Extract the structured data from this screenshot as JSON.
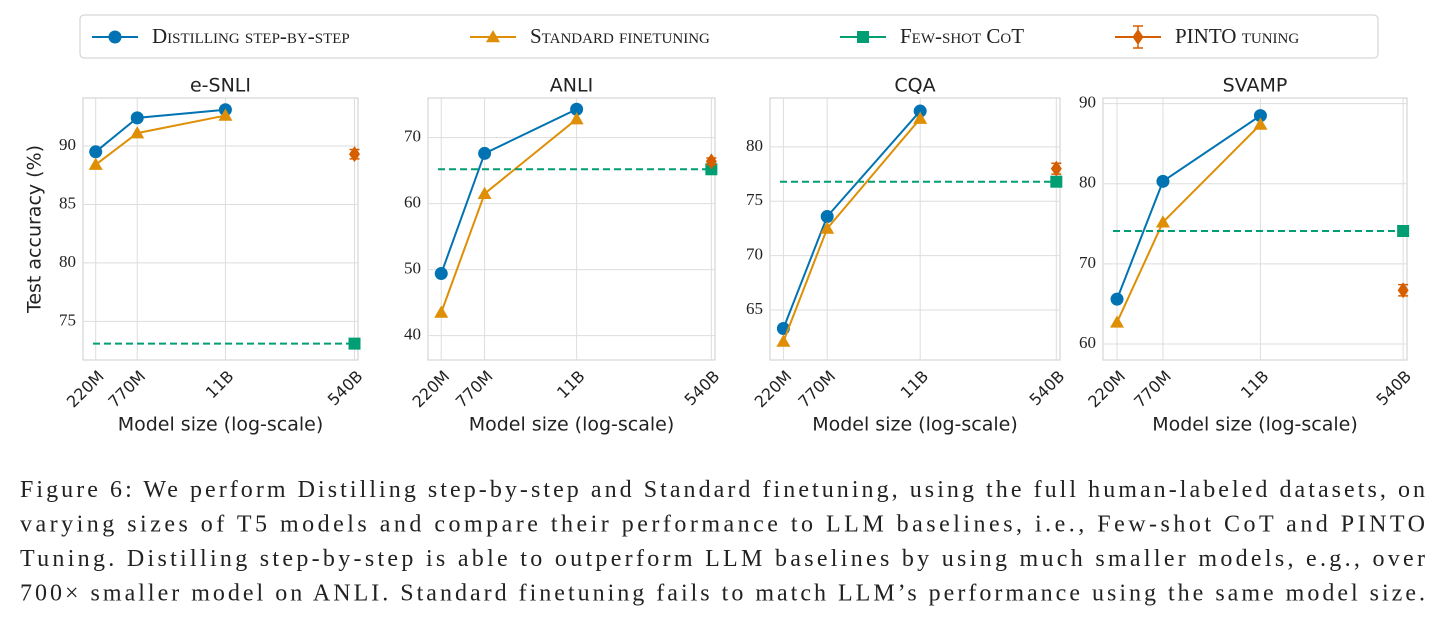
{
  "chart_data": [
    {
      "type": "line",
      "title": "e-SNLI",
      "ylabel": "Test accuracy (%)",
      "xlabel": "Model size (log-scale)",
      "xscale": "log",
      "grid": true,
      "xlim": [
        0.15,
        600
      ],
      "ylim": [
        71.7,
        94.1
      ],
      "xticks": [
        {
          "value": 0.22,
          "label": "220M"
        },
        {
          "value": 0.77,
          "label": "770M"
        },
        {
          "value": 11,
          "label": "11B"
        },
        {
          "value": 540,
          "label": "540B"
        }
      ],
      "yticks": [
        75,
        80,
        85,
        90
      ],
      "series": [
        {
          "name": "Distilling step-by-step",
          "color": "#0173b2",
          "marker": "circle",
          "x": [
            0.22,
            0.77,
            11
          ],
          "values": [
            89.5,
            92.4,
            93.1
          ]
        },
        {
          "name": "Standard finetuning",
          "color": "#de8f05",
          "marker": "triangle",
          "x": [
            0.22,
            0.77,
            11
          ],
          "values": [
            88.4,
            91.1,
            92.6
          ]
        },
        {
          "name": "Few-shot CoT",
          "color": "#029e73",
          "marker": "square",
          "dashed_hline": true,
          "x": [
            540
          ],
          "values": [
            73.1
          ]
        },
        {
          "name": "PINTO tuning",
          "color": "#d55e00",
          "marker": "diamond",
          "x": [
            540
          ],
          "values": [
            89.3
          ],
          "errors": [
            0.4
          ]
        }
      ]
    },
    {
      "type": "line",
      "title": "ANLI",
      "xlabel": "Model size (log-scale)",
      "xscale": "log",
      "grid": true,
      "xlim": [
        0.15,
        600
      ],
      "ylim": [
        36.3,
        76
      ],
      "xticks": [
        {
          "value": 0.22,
          "label": "220M"
        },
        {
          "value": 0.77,
          "label": "770M"
        },
        {
          "value": 11,
          "label": "11B"
        },
        {
          "value": 540,
          "label": "540B"
        }
      ],
      "yticks": [
        40,
        50,
        60,
        70
      ],
      "series": [
        {
          "name": "Distilling step-by-step",
          "color": "#0173b2",
          "marker": "circle",
          "x": [
            0.22,
            0.77,
            11
          ],
          "values": [
            49.4,
            67.6,
            74.3
          ]
        },
        {
          "name": "Standard finetuning",
          "color": "#de8f05",
          "marker": "triangle",
          "x": [
            0.22,
            0.77,
            11
          ],
          "values": [
            43.5,
            61.5,
            72.8
          ]
        },
        {
          "name": "Few-shot CoT",
          "color": "#029e73",
          "marker": "square",
          "dashed_hline": true,
          "x": [
            540
          ],
          "values": [
            65.2
          ]
        },
        {
          "name": "PINTO tuning",
          "color": "#d55e00",
          "marker": "diamond",
          "x": [
            540
          ],
          "values": [
            66.4
          ],
          "errors": [
            0.5
          ]
        }
      ]
    },
    {
      "type": "line",
      "title": "CQA",
      "xlabel": "Model size (log-scale)",
      "xscale": "log",
      "grid": true,
      "xlim": [
        0.15,
        600
      ],
      "ylim": [
        60.4,
        84.5
      ],
      "xticks": [
        {
          "value": 0.22,
          "label": "220M"
        },
        {
          "value": 0.77,
          "label": "770M"
        },
        {
          "value": 11,
          "label": "11B"
        },
        {
          "value": 540,
          "label": "540B"
        }
      ],
      "yticks": [
        65,
        70,
        75,
        80
      ],
      "series": [
        {
          "name": "Distilling step-by-step",
          "color": "#0173b2",
          "marker": "circle",
          "x": [
            0.22,
            0.77,
            11
          ],
          "values": [
            63.3,
            73.6,
            83.3
          ]
        },
        {
          "name": "Standard finetuning",
          "color": "#de8f05",
          "marker": "triangle",
          "x": [
            0.22,
            0.77,
            11
          ],
          "values": [
            62.1,
            72.5,
            82.6
          ]
        },
        {
          "name": "Few-shot CoT",
          "color": "#029e73",
          "marker": "square",
          "dashed_hline": true,
          "x": [
            540
          ],
          "values": [
            76.8
          ]
        },
        {
          "name": "PINTO tuning",
          "color": "#d55e00",
          "marker": "diamond",
          "x": [
            540
          ],
          "values": [
            78.0
          ],
          "errors": [
            0.5
          ]
        }
      ]
    },
    {
      "type": "line",
      "title": "SVAMP",
      "xlabel": "Model size (log-scale)",
      "xscale": "log",
      "grid": true,
      "xlim": [
        0.15,
        600
      ],
      "ylim": [
        58,
        90.7
      ],
      "xticks": [
        {
          "value": 0.22,
          "label": "220M"
        },
        {
          "value": 0.77,
          "label": "770M"
        },
        {
          "value": 11,
          "label": "11B"
        },
        {
          "value": 540,
          "label": "540B"
        }
      ],
      "yticks": [
        60,
        70,
        80,
        90
      ],
      "series": [
        {
          "name": "Distilling step-by-step",
          "color": "#0173b2",
          "marker": "circle",
          "x": [
            0.22,
            0.77,
            11
          ],
          "values": [
            65.6,
            80.3,
            88.5
          ]
        },
        {
          "name": "Standard finetuning",
          "color": "#de8f05",
          "marker": "triangle",
          "x": [
            0.22,
            0.77,
            11
          ],
          "values": [
            62.7,
            75.2,
            87.4
          ]
        },
        {
          "name": "Few-shot CoT",
          "color": "#029e73",
          "marker": "square",
          "dashed_hline": true,
          "x": [
            540
          ],
          "values": [
            74.1
          ]
        },
        {
          "name": "PINTO tuning",
          "color": "#d55e00",
          "marker": "diamond",
          "x": [
            540
          ],
          "values": [
            66.7
          ],
          "errors": [
            0.7
          ]
        }
      ]
    }
  ],
  "caption": [
    "Figure 6: We perform Distilling step-by-step and Standard finetuning, using the full human-labeled datasets, on",
    "varying sizes of T5 models and compare their performance to LLM baselines, i.e., Few-shot CoT and PINTO",
    "Tuning. Distilling step-by-step is able to outperform LLM baselines by using much smaller models, e.g., over",
    "700× smaller model on ANLI. Standard finetuning fails to match LLM’s performance using the same model size."
  ]
}
